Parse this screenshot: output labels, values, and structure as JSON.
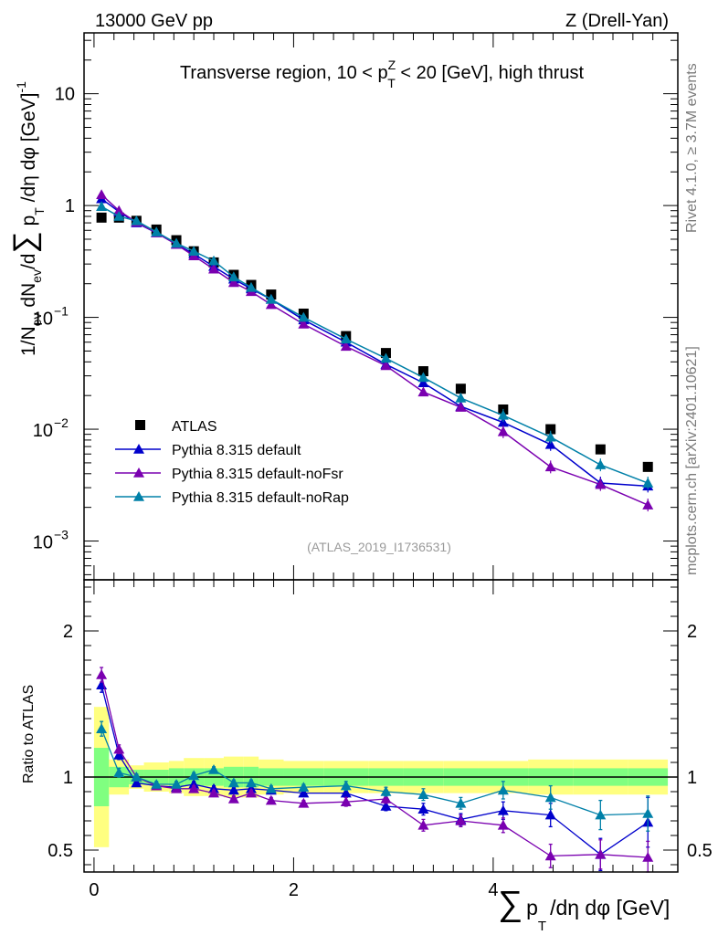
{
  "header": {
    "left": "13000 GeV pp",
    "right": "Z (Drell-Yan)"
  },
  "side_labels": {
    "rivet": "Rivet 4.1.0, ≥ 3.7M events",
    "mcplots": "mcplots.cern.ch [arXiv:2401.10621]"
  },
  "colors": {
    "atlas": "#000000",
    "default": "#0000cc",
    "noFsr": "#7a00b0",
    "noRap": "#0080a8",
    "band_inner": "#80ff80",
    "band_outer": "#ffff80"
  },
  "chart_data": [
    {
      "type": "scatter",
      "panel": "main",
      "title": "Transverse region, 10 < p_T^Z < 20 [GeV], high thrust",
      "title_parts": {
        "pre": "Transverse region, 10 < p",
        "sup": "Z",
        "sub": "T",
        "post": " < 20 [GeV], high thrust"
      },
      "ylabel": "1/N_ev dN_ev/d∑p_T/dη dφ [GeV]^-1",
      "ylabel_parts": {
        "a": "1/N",
        "ev": "ev",
        "b": " dN",
        "c": "/d",
        "sum": "∑",
        "d": " p",
        "T": "T",
        "e": " /dη dφ  [GeV]",
        "exp": "-1"
      },
      "yscale": "log",
      "ylim": [
        0.00045,
        35
      ],
      "xlim": [
        -0.1,
        5.85
      ],
      "y_ticks": [
        {
          "v": 0.001,
          "base": "10",
          "exp": "−3"
        },
        {
          "v": 0.01,
          "base": "10",
          "exp": "−2"
        },
        {
          "v": 0.1,
          "base": "10",
          "exp": "−1"
        },
        {
          "v": 1,
          "label": "1"
        },
        {
          "v": 10,
          "label": "10"
        }
      ],
      "watermark": "(ATLAS_2019_I1736531)",
      "legend_position": "lower-left",
      "series": [
        {
          "name": "ATLAS",
          "marker": "square",
          "color": "#000000",
          "x": [
            0.075,
            0.25,
            0.425,
            0.625,
            0.825,
            1.0,
            1.2,
            1.4,
            1.575,
            1.775,
            2.1,
            2.525,
            2.925,
            3.3,
            3.675,
            4.1,
            4.575,
            5.075,
            5.55
          ],
          "y": [
            0.78,
            0.78,
            0.73,
            0.61,
            0.49,
            0.39,
            0.31,
            0.24,
            0.195,
            0.16,
            0.108,
            0.068,
            0.048,
            0.033,
            0.023,
            0.015,
            0.01,
            0.0066,
            0.0046
          ]
        },
        {
          "name": "Pythia 8.315 default",
          "marker": "triangle",
          "color": "#0000cc",
          "x": [
            0.075,
            0.25,
            0.425,
            0.625,
            0.825,
            1.0,
            1.2,
            1.4,
            1.575,
            1.775,
            2.1,
            2.525,
            2.925,
            3.3,
            3.675,
            4.1,
            4.575,
            5.075,
            5.55
          ],
          "y": [
            1.15,
            0.88,
            0.7,
            0.57,
            0.45,
            0.37,
            0.285,
            0.22,
            0.18,
            0.145,
            0.095,
            0.06,
            0.038,
            0.026,
            0.016,
            0.0115,
            0.0073,
            0.0033,
            0.0031
          ]
        },
        {
          "name": "Pythia 8.315 default-noFsr",
          "marker": "triangle",
          "color": "#7a00b0",
          "x": [
            0.075,
            0.25,
            0.425,
            0.625,
            0.825,
            1.0,
            1.2,
            1.4,
            1.575,
            1.775,
            2.1,
            2.525,
            2.925,
            3.3,
            3.675,
            4.1,
            4.575,
            5.075,
            5.55
          ],
          "y": [
            1.25,
            0.9,
            0.71,
            0.57,
            0.45,
            0.355,
            0.27,
            0.205,
            0.17,
            0.13,
            0.087,
            0.055,
            0.037,
            0.0215,
            0.0157,
            0.0095,
            0.0046,
            0.0032,
            0.0021
          ]
        },
        {
          "name": "Pythia 8.315 default-noRap",
          "marker": "triangle",
          "color": "#0080a8",
          "x": [
            0.075,
            0.25,
            0.425,
            0.625,
            0.825,
            1.0,
            1.2,
            1.4,
            1.575,
            1.775,
            2.1,
            2.525,
            2.925,
            3.3,
            3.675,
            4.1,
            4.575,
            5.075,
            5.55
          ],
          "y": [
            0.98,
            0.8,
            0.73,
            0.58,
            0.46,
            0.39,
            0.32,
            0.23,
            0.185,
            0.145,
            0.1,
            0.064,
            0.043,
            0.029,
            0.019,
            0.0133,
            0.0085,
            0.0048,
            0.0033
          ]
        }
      ]
    },
    {
      "type": "line",
      "panel": "ratio",
      "ylabel": "Ratio to ATLAS",
      "xlabel": "∑ p_T /dη dφ [GeV]",
      "xlabel_parts": {
        "sum": "∑",
        "p": "p",
        "T": "T",
        "rest": "/dη dφ [GeV]"
      },
      "ylim": [
        0.35,
        2.35
      ],
      "xlim": [
        -0.1,
        5.85
      ],
      "x_ticks": [
        0,
        2,
        4
      ],
      "x_tick_labels": [
        "0",
        "2",
        "4"
      ],
      "y_ticks": [
        0.5,
        1,
        2
      ],
      "y_tick_labels": [
        "0.5",
        "1",
        "2"
      ],
      "band_edges": [
        0,
        0.15,
        0.35,
        0.5,
        0.75,
        0.9,
        1.1,
        1.3,
        1.5,
        1.65,
        1.9,
        2.3,
        2.75,
        3.1,
        3.5,
        3.85,
        4.35,
        4.8,
        5.35,
        5.75
      ],
      "band_inner_lo": [
        0.8,
        0.93,
        0.95,
        0.95,
        0.94,
        0.94,
        0.94,
        0.93,
        0.93,
        0.94,
        0.94,
        0.94,
        0.94,
        0.94,
        0.94,
        0.94,
        0.94,
        0.94,
        0.94
      ],
      "band_inner_hi": [
        1.2,
        1.07,
        1.05,
        1.05,
        1.06,
        1.06,
        1.06,
        1.07,
        1.07,
        1.06,
        1.06,
        1.06,
        1.06,
        1.06,
        1.06,
        1.06,
        1.06,
        1.06,
        1.06
      ],
      "band_outer_lo": [
        0.52,
        0.88,
        0.92,
        0.9,
        0.89,
        0.87,
        0.87,
        0.86,
        0.86,
        0.88,
        0.89,
        0.89,
        0.89,
        0.89,
        0.89,
        0.89,
        0.88,
        0.88,
        0.88
      ],
      "band_outer_hi": [
        1.48,
        1.12,
        1.08,
        1.1,
        1.11,
        1.13,
        1.13,
        1.14,
        1.14,
        1.12,
        1.11,
        1.11,
        1.11,
        1.11,
        1.11,
        1.11,
        1.12,
        1.12,
        1.12
      ],
      "series": [
        {
          "name": "Pythia 8.315 default",
          "color": "#0000cc",
          "x": [
            0.075,
            0.25,
            0.425,
            0.625,
            0.825,
            1.0,
            1.2,
            1.4,
            1.575,
            1.775,
            2.1,
            2.525,
            2.925,
            3.3,
            3.675,
            4.1,
            4.575,
            5.075,
            5.55
          ],
          "y": [
            1.63,
            1.15,
            0.96,
            0.94,
            0.93,
            0.95,
            0.92,
            0.91,
            0.92,
            0.91,
            0.89,
            0.89,
            0.8,
            0.78,
            0.71,
            0.77,
            0.74,
            0.47,
            0.69
          ],
          "err": [
            0.05,
            0.03,
            0.02,
            0.02,
            0.02,
            0.02,
            0.02,
            0.02,
            0.02,
            0.02,
            0.02,
            0.03,
            0.03,
            0.04,
            0.04,
            0.06,
            0.08,
            0.11,
            0.17
          ]
        },
        {
          "name": "Pythia 8.315 default-noFsr",
          "color": "#7a00b0",
          "x": [
            0.075,
            0.25,
            0.425,
            0.625,
            0.825,
            1.0,
            1.2,
            1.4,
            1.575,
            1.775,
            2.1,
            2.525,
            2.925,
            3.3,
            3.675,
            4.1,
            4.575,
            5.075,
            5.55
          ],
          "y": [
            1.7,
            1.19,
            1.0,
            0.94,
            0.92,
            0.92,
            0.89,
            0.85,
            0.89,
            0.84,
            0.82,
            0.83,
            0.85,
            0.67,
            0.7,
            0.67,
            0.46,
            0.47,
            0.45
          ],
          "err": [
            0.05,
            0.03,
            0.02,
            0.02,
            0.02,
            0.02,
            0.02,
            0.02,
            0.02,
            0.02,
            0.02,
            0.03,
            0.03,
            0.04,
            0.04,
            0.05,
            0.08,
            0.1,
            0.11
          ]
        },
        {
          "name": "Pythia 8.315 default-noRap",
          "color": "#0080a8",
          "x": [
            0.075,
            0.25,
            0.425,
            0.625,
            0.825,
            1.0,
            1.2,
            1.4,
            1.575,
            1.775,
            2.1,
            2.525,
            2.925,
            3.3,
            3.675,
            4.1,
            4.575,
            5.075,
            5.55
          ],
          "y": [
            1.33,
            1.03,
            1.0,
            0.95,
            0.95,
            1.01,
            1.05,
            0.96,
            0.96,
            0.92,
            0.93,
            0.94,
            0.9,
            0.88,
            0.82,
            0.91,
            0.86,
            0.74,
            0.75
          ],
          "err": [
            0.05,
            0.03,
            0.02,
            0.02,
            0.02,
            0.02,
            0.02,
            0.02,
            0.02,
            0.02,
            0.02,
            0.03,
            0.03,
            0.04,
            0.04,
            0.06,
            0.08,
            0.1,
            0.12
          ]
        }
      ]
    }
  ]
}
